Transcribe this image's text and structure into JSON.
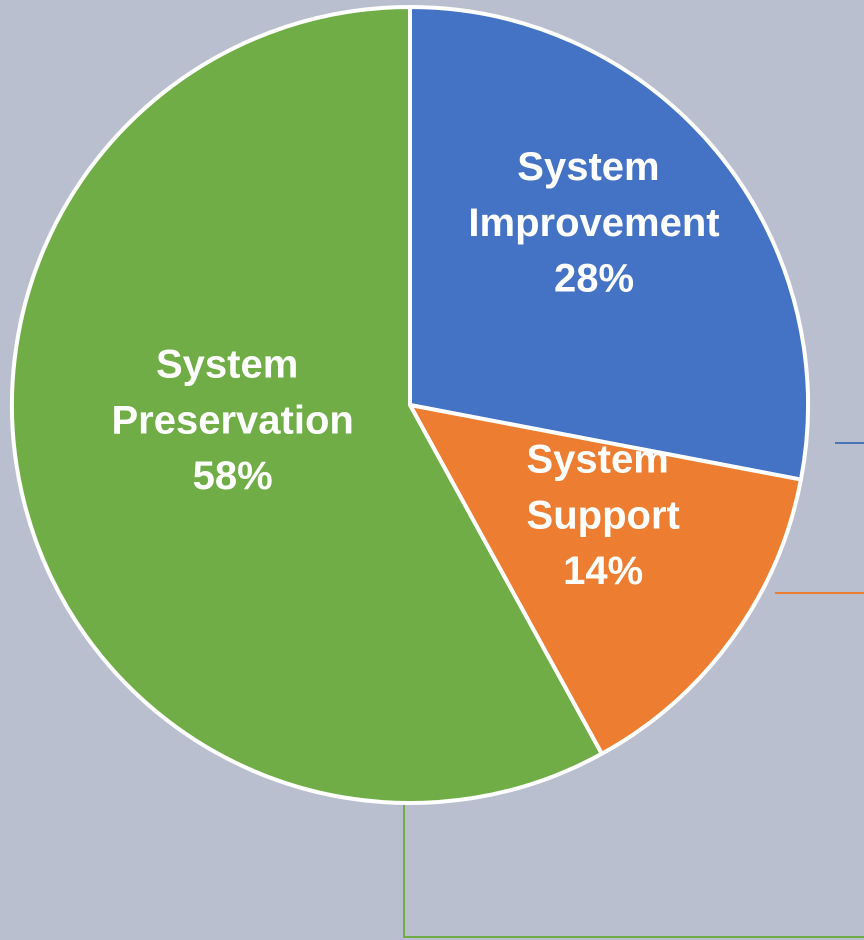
{
  "chart_data": {
    "type": "pie",
    "categories": [
      "System Improvement",
      "System Support",
      "System Preservation"
    ],
    "values": [
      28,
      14,
      58
    ],
    "value_labels": [
      "28%",
      "14%",
      "58%"
    ],
    "colors": [
      "#4472c4",
      "#ed7d31",
      "#70ad47"
    ]
  }
}
